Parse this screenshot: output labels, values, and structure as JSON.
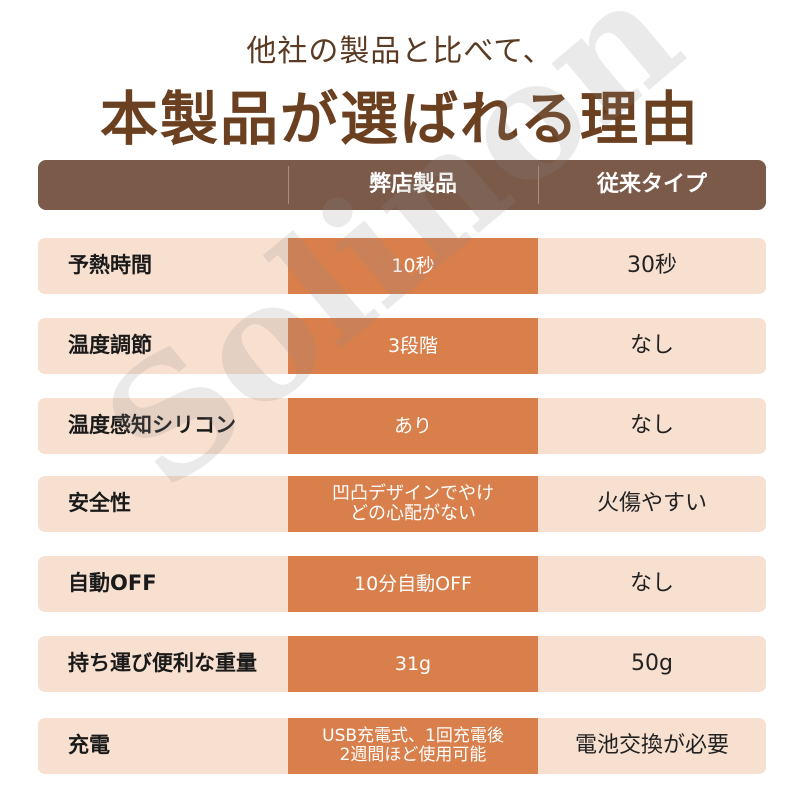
{
  "header": {
    "subtitle": "他社の製品と比べて、",
    "title": "本製品が選ばれる理由"
  },
  "table": {
    "columns": [
      "",
      "弊店製品",
      "従来タイプ"
    ],
    "rows": [
      {
        "label": "予熱時間",
        "ours": "10秒",
        "theirs": "30秒"
      },
      {
        "label": "温度調節",
        "ours": "3段階",
        "theirs": "なし"
      },
      {
        "label": "温度感知シリコン",
        "ours": "あり",
        "theirs": "なし"
      },
      {
        "label": "安全性",
        "ours": "凹凸デザインでやけ\nどの心配がない",
        "theirs": "火傷やすい"
      },
      {
        "label": "自動OFF",
        "ours": "10分自動OFF",
        "theirs": "なし"
      },
      {
        "label": "持ち運び便利な重量",
        "ours": "31g",
        "theirs": "50g"
      },
      {
        "label": "充電",
        "ours": "USB充電式、1回充電後\n2週間ほど使用可能",
        "theirs": "電池交換が必要"
      }
    ]
  },
  "watermark": "Solinon",
  "colors": {
    "header_bg": "#7b5a4a",
    "row_bg": "#f8e0d0",
    "highlight": "#d87f4c",
    "title": "#6b4020"
  }
}
